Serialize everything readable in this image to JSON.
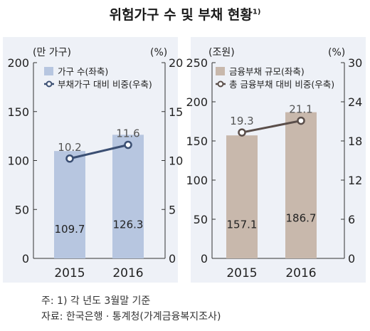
{
  "title": "위험가구 수 및 부채 현황",
  "title_sup": "1)",
  "notes": {
    "note1": "주: 1) 각 년도 3월말 기준",
    "source": "자료: 한국은행 · 통계청(가계금융복지조사)"
  },
  "colors": {
    "left_bar": "#b7c6e0",
    "left_line": "#3b4f73",
    "right_bar": "#c8b8ac",
    "right_line": "#5a4e4a",
    "panel_bg": "#eef1f7"
  },
  "chart_data": [
    {
      "type": "bar",
      "categories": [
        "2015",
        "2016"
      ],
      "left_unit": "(만 가구)",
      "right_unit": "(%)",
      "ylim": [
        0,
        200
      ],
      "yticks": [
        "0",
        "50",
        "100",
        "150",
        "200"
      ],
      "y2lim": [
        0,
        20
      ],
      "y2ticks": [
        "0",
        "5",
        "10",
        "15",
        "20"
      ],
      "series": [
        {
          "name": "가구 수(좌축)",
          "kind": "bar",
          "axis": "left",
          "values": [
            109.7,
            126.3
          ],
          "labels": [
            "109.7",
            "126.3"
          ]
        },
        {
          "name": "부채가구 대비 비중(우축)",
          "kind": "line",
          "axis": "right",
          "values": [
            10.2,
            11.6
          ],
          "labels": [
            "10.2",
            "11.6"
          ]
        }
      ]
    },
    {
      "type": "bar",
      "categories": [
        "2015",
        "2016"
      ],
      "left_unit": "(조원)",
      "right_unit": "(%)",
      "ylim": [
        0,
        250
      ],
      "yticks": [
        "0",
        "50",
        "100",
        "150",
        "200",
        "250"
      ],
      "y2lim": [
        0,
        30
      ],
      "y2ticks": [
        "0",
        "6",
        "12",
        "18",
        "24",
        "30"
      ],
      "series": [
        {
          "name": "금융부채 규모(좌축)",
          "kind": "bar",
          "axis": "left",
          "values": [
            157.1,
            186.7
          ],
          "labels": [
            "157.1",
            "186.7"
          ]
        },
        {
          "name": "총 금융부채 대비 비중(우축)",
          "kind": "line",
          "axis": "right",
          "values": [
            19.3,
            21.1
          ],
          "labels": [
            "19.3",
            "21.1"
          ]
        }
      ]
    }
  ]
}
